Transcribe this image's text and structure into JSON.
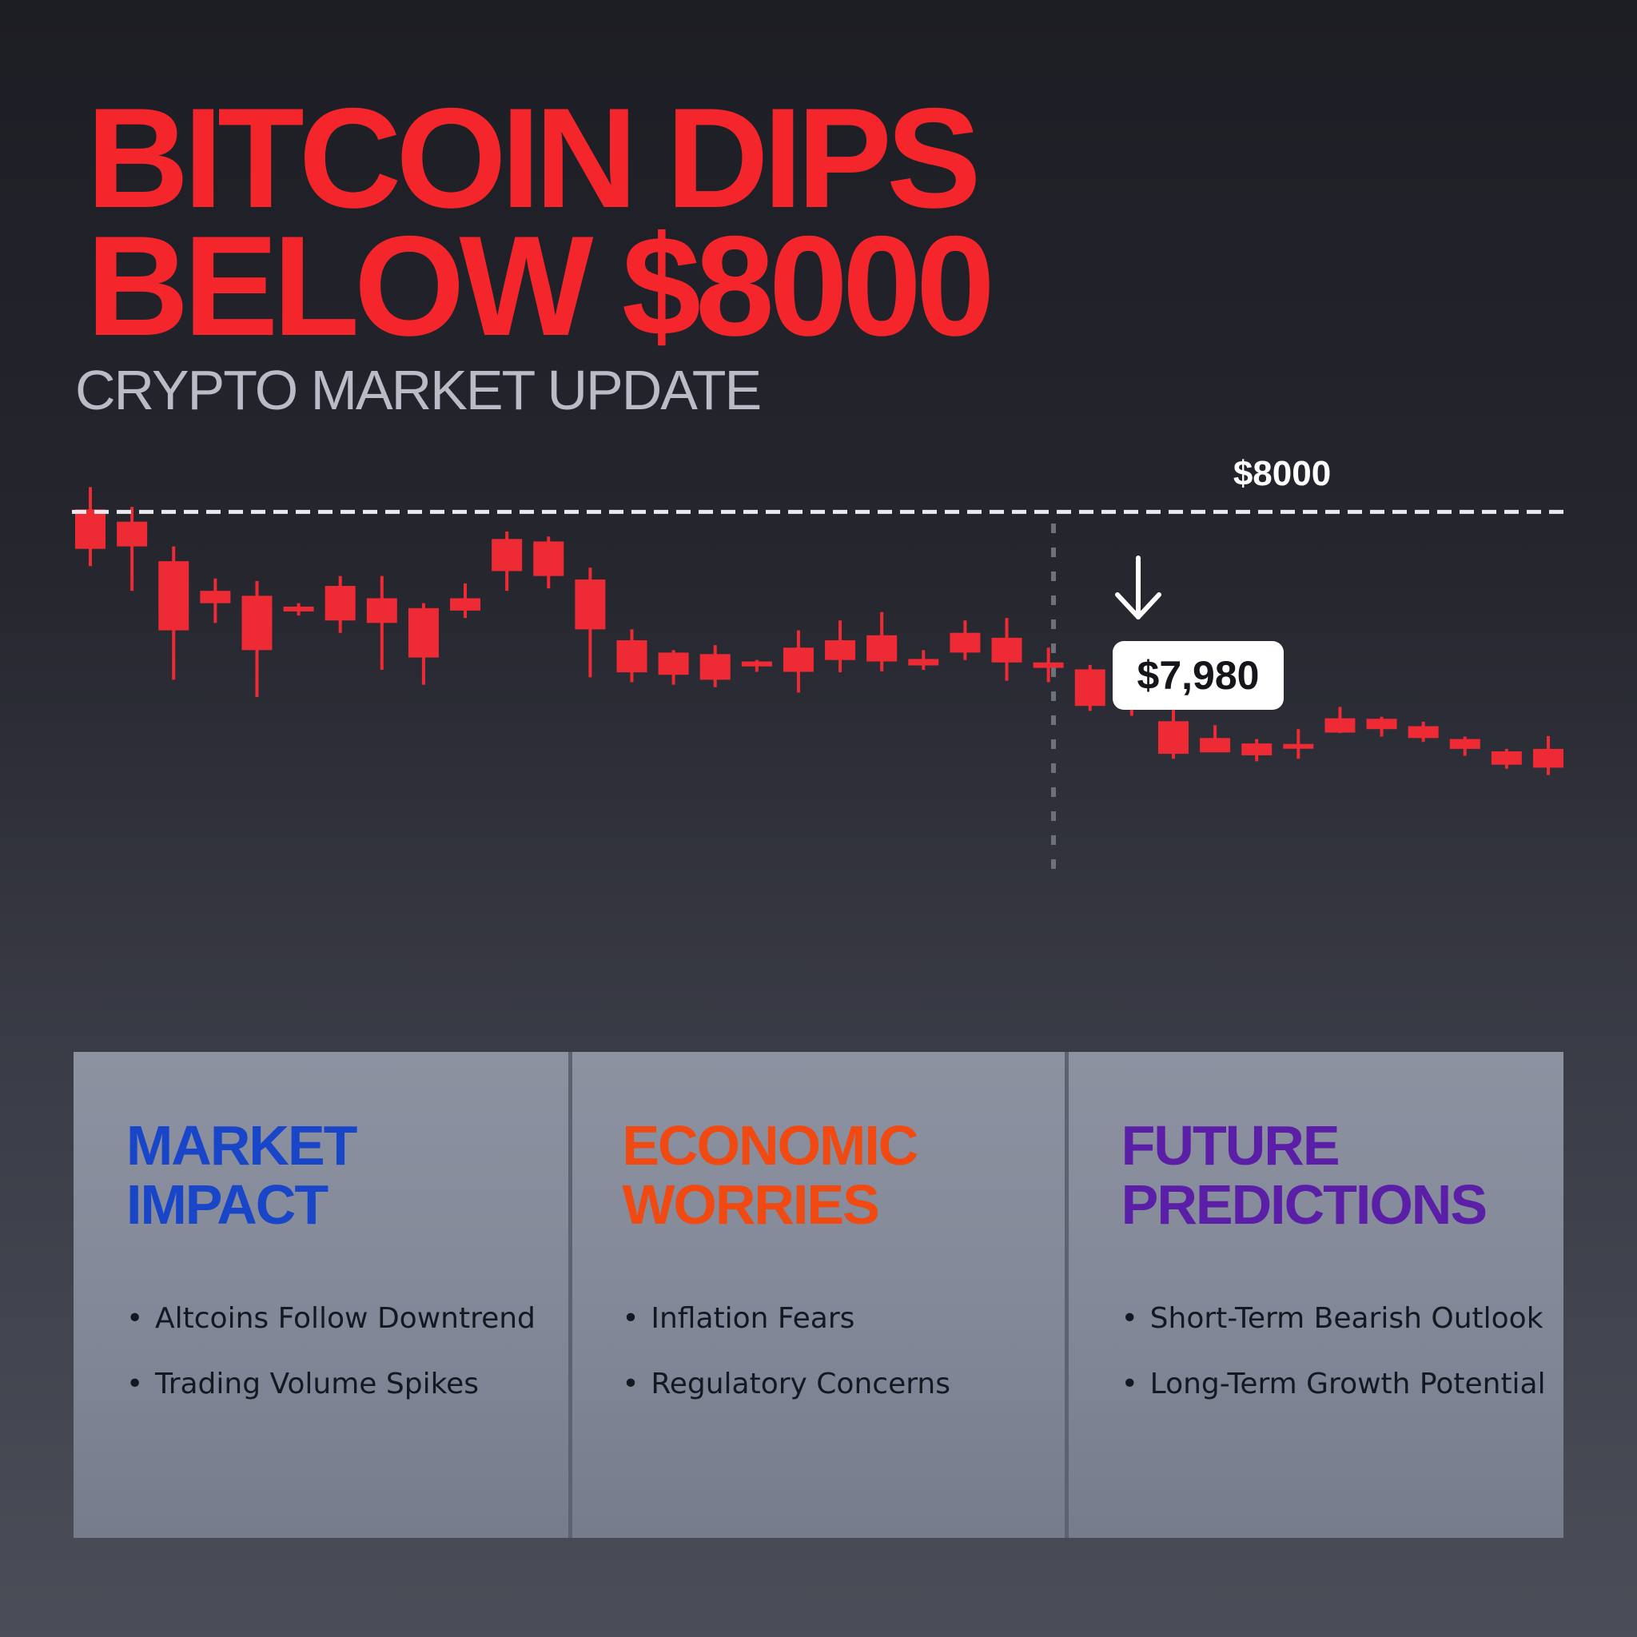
{
  "headline": {
    "line1": "BITCOIN DIPS",
    "line2": "BELOW $8000"
  },
  "subtitle": "CRYPTO MARKET UPDATE",
  "callout": {
    "price": "$7,980",
    "arrow_icon": "down-arrow-icon"
  },
  "colors": {
    "candle": "#ee2a35",
    "threshold_line": "#e9e9ee",
    "headline": "#f5262b"
  },
  "chart_data": {
    "type": "candlestick",
    "title": "",
    "threshold": {
      "value": 8000,
      "label": "$8000"
    },
    "grid": false,
    "ylim": [
      6900,
      8130
    ],
    "candles": [
      {
        "open": 8005,
        "close": 7925,
        "high": 8050,
        "low": 7890
      },
      {
        "open": 7980,
        "close": 7930,
        "high": 8010,
        "low": 7840
      },
      {
        "open": 7900,
        "close": 7760,
        "high": 7930,
        "low": 7660
      },
      {
        "open": 7840,
        "close": 7815,
        "high": 7865,
        "low": 7775
      },
      {
        "open": 7830,
        "close": 7720,
        "high": 7860,
        "low": 7625
      },
      {
        "open": 7808,
        "close": 7800,
        "high": 7815,
        "low": 7790
      },
      {
        "open": 7850,
        "close": 7780,
        "high": 7870,
        "low": 7755
      },
      {
        "open": 7825,
        "close": 7775,
        "high": 7870,
        "low": 7680
      },
      {
        "open": 7805,
        "close": 7705,
        "high": 7815,
        "low": 7650
      },
      {
        "open": 7825,
        "close": 7800,
        "high": 7855,
        "low": 7785
      },
      {
        "open": 7945,
        "close": 7880,
        "high": 7960,
        "low": 7840
      },
      {
        "open": 7940,
        "close": 7870,
        "high": 7950,
        "low": 7845
      },
      {
        "open": 7863,
        "close": 7762,
        "high": 7887,
        "low": 7665
      },
      {
        "open": 7740,
        "close": 7675,
        "high": 7762,
        "low": 7655
      },
      {
        "open": 7715,
        "close": 7670,
        "high": 7720,
        "low": 7650
      },
      {
        "open": 7712,
        "close": 7660,
        "high": 7730,
        "low": 7645
      },
      {
        "open": 7697,
        "close": 7687,
        "high": 7700,
        "low": 7676
      },
      {
        "open": 7725,
        "close": 7676,
        "high": 7760,
        "low": 7634
      },
      {
        "open": 7740,
        "close": 7700,
        "high": 7780,
        "low": 7675
      },
      {
        "open": 7750,
        "close": 7697,
        "high": 7797,
        "low": 7677
      },
      {
        "open": 7702,
        "close": 7689,
        "high": 7720,
        "low": 7680
      },
      {
        "open": 7755,
        "close": 7715,
        "high": 7780,
        "low": 7700
      },
      {
        "open": 7745,
        "close": 7695,
        "high": 7785,
        "low": 7658
      },
      {
        "open": 7695,
        "close": 7684,
        "high": 7725,
        "low": 7655
      },
      {
        "open": 7681,
        "close": 7607,
        "high": 7690,
        "low": 7597
      },
      {
        "open": 7656,
        "close": 7617,
        "high": 7690,
        "low": 7587
      },
      {
        "open": 7576,
        "close": 7510,
        "high": 7605,
        "low": 7500
      },
      {
        "open": 7542,
        "close": 7513,
        "high": 7568,
        "low": 7515
      },
      {
        "open": 7531,
        "close": 7507,
        "high": 7540,
        "low": 7495
      },
      {
        "open": 7530,
        "close": 7525,
        "high": 7560,
        "low": 7500
      },
      {
        "open": 7582,
        "close": 7553,
        "high": 7605,
        "low": 7552
      },
      {
        "open": 7581,
        "close": 7560,
        "high": 7585,
        "low": 7545
      },
      {
        "open": 7566,
        "close": 7542,
        "high": 7575,
        "low": 7534
      },
      {
        "open": 7540,
        "close": 7520,
        "high": 7545,
        "low": 7506
      },
      {
        "open": 7515,
        "close": 7488,
        "high": 7520,
        "low": 7480
      },
      {
        "open": 7520,
        "close": 7482,
        "high": 7546,
        "low": 7467
      }
    ]
  },
  "panels": [
    {
      "title_line1": "MARKET",
      "title_line2": "IMPACT",
      "color": "#1946c9",
      "bullets": [
        "Altcoins Follow Downtrend",
        "Trading Volume Spikes"
      ]
    },
    {
      "title_line1": "ECONOMIC",
      "title_line2": "WORRIES",
      "color": "#f04a12",
      "bullets": [
        "Inflation Fears",
        "Regulatory Concerns"
      ]
    },
    {
      "title_line1": "FUTURE",
      "title_line2": "PREDICTIONS",
      "color": "#5b1ea6",
      "bullets": [
        "Short-Term Bearish Outlook",
        "Long-Term Growth Potential"
      ]
    }
  ]
}
